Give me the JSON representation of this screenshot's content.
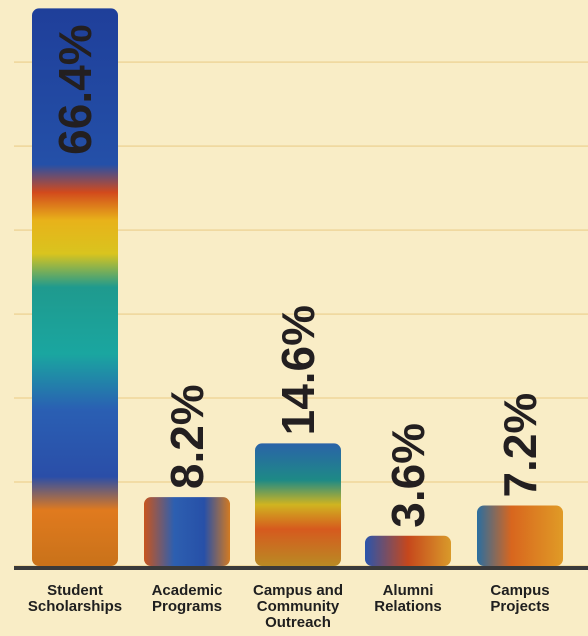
{
  "chart_data": {
    "type": "bar",
    "categories": [
      "Student Scholarships",
      "Academic Programs",
      "Campus and Community Outreach",
      "Alumni Relations",
      "Campus Projects"
    ],
    "values": [
      66.4,
      8.2,
      14.6,
      3.6,
      7.2
    ],
    "value_labels": [
      "66.4%",
      "8.2%",
      "14.6%",
      "3.6%",
      "7.2%"
    ],
    "ylim": [
      0,
      67.4
    ],
    "yticks": [
      0,
      10,
      20,
      30,
      40,
      50,
      60
    ],
    "grid": true
  }
}
